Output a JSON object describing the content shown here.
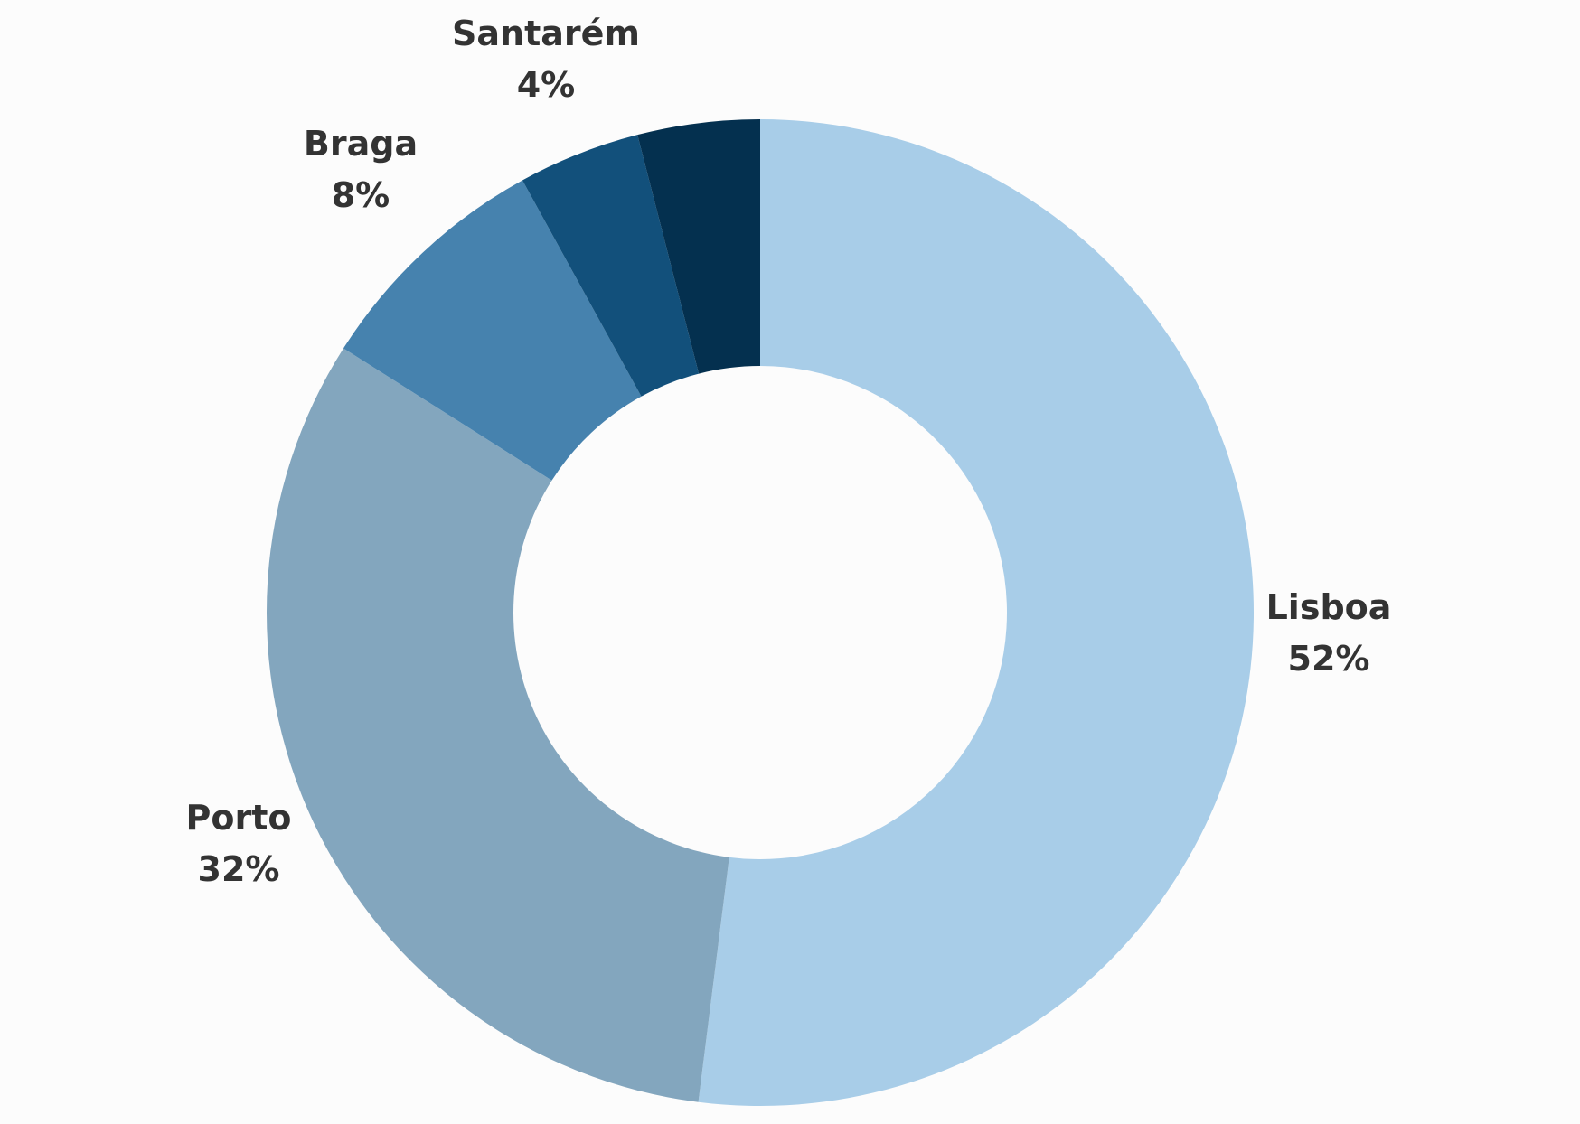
{
  "chart_data": {
    "type": "pie",
    "variant": "donut",
    "title": "",
    "slices": [
      {
        "label": "Lisboa",
        "value": 52,
        "value_label": "52%",
        "color": "#a8cde8"
      },
      {
        "label": "Porto",
        "value": 32,
        "value_label": "32%",
        "color": "#83a6be"
      },
      {
        "label": "Braga",
        "value": 8,
        "value_label": "8%",
        "color": "#4682ae"
      },
      {
        "label": "Santarém",
        "value": 4,
        "value_label": "4%",
        "color": "#12507b"
      },
      {
        "label": "",
        "value": 4,
        "value_label": "",
        "color": "#04304f"
      }
    ],
    "start": "12 o'clock",
    "direction": "clockwise",
    "legend": "none",
    "label_color": "#333333",
    "background": "#fcfcfc"
  }
}
